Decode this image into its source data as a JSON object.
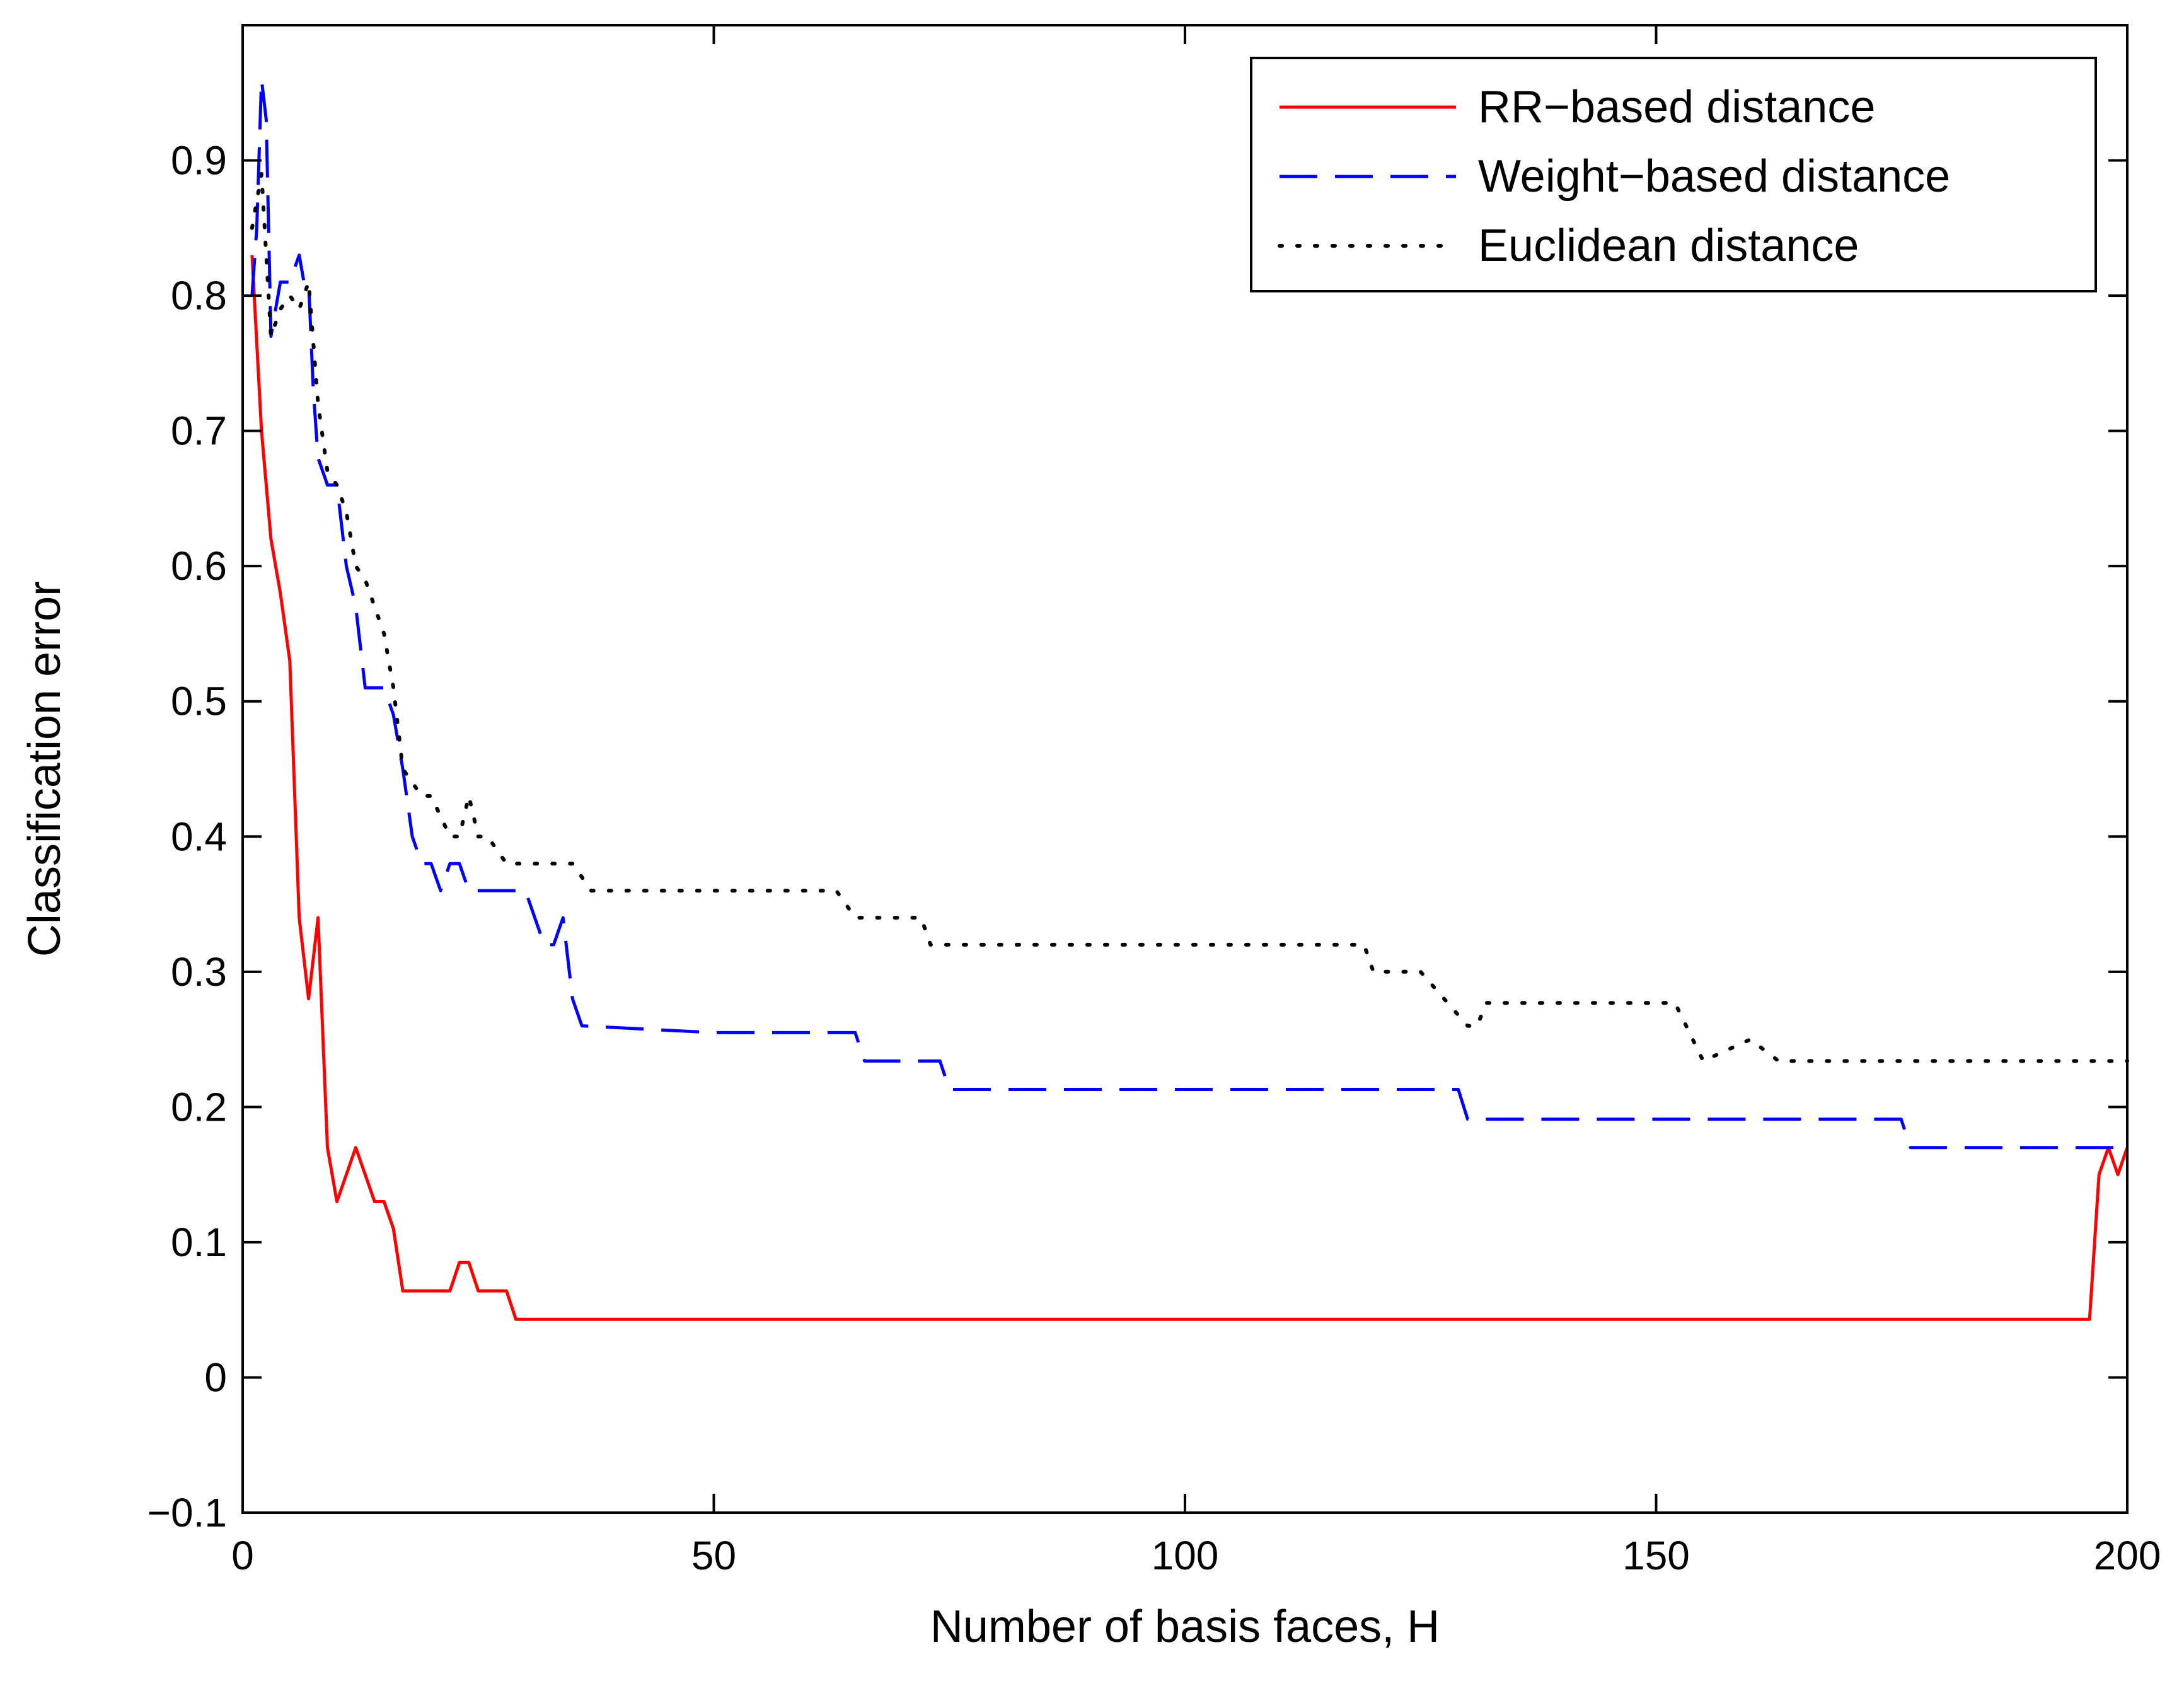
{
  "chart_data": {
    "type": "line",
    "title": "",
    "xlabel": "Number of basis faces, H",
    "ylabel": "Classification error",
    "xlim": [
      0,
      200
    ],
    "ylim": [
      -0.1,
      1.0
    ],
    "xticks": [
      0,
      50,
      100,
      150,
      200
    ],
    "xtick_labels": [
      "0",
      "50",
      "100",
      "150",
      "200"
    ],
    "yticks": [
      -0.1,
      0,
      0.1,
      0.2,
      0.3,
      0.4,
      0.5,
      0.6,
      0.7,
      0.8,
      0.9
    ],
    "ytick_labels": [
      "−0.1",
      "0",
      "0.1",
      "0.2",
      "0.3",
      "0.4",
      "0.5",
      "0.6",
      "0.7",
      "0.8",
      "0.9"
    ],
    "grid": false,
    "legend_position": "top-right",
    "series": [
      {
        "name": "RR−based distance",
        "color": "#ff0000",
        "style": "solid",
        "x": [
          1,
          2,
          3,
          4,
          5,
          6,
          7,
          8,
          9,
          10,
          11,
          12,
          13,
          14,
          15,
          16,
          17,
          18,
          19,
          20,
          21,
          22,
          23,
          24,
          25,
          26,
          27,
          28,
          29,
          30,
          40,
          60,
          80,
          100,
          120,
          140,
          160,
          180,
          196,
          197,
          198,
          199,
          200
        ],
        "y": [
          0.83,
          0.7,
          0.62,
          0.58,
          0.53,
          0.34,
          0.28,
          0.34,
          0.17,
          0.13,
          0.15,
          0.17,
          0.15,
          0.13,
          0.13,
          0.11,
          0.064,
          0.064,
          0.064,
          0.064,
          0.064,
          0.064,
          0.085,
          0.085,
          0.064,
          0.064,
          0.064,
          0.064,
          0.043,
          0.043,
          0.043,
          0.043,
          0.043,
          0.043,
          0.043,
          0.043,
          0.043,
          0.043,
          0.043,
          0.15,
          0.17,
          0.15,
          0.17
        ]
      },
      {
        "name": "Weight−based distance",
        "color": "#0000ff",
        "style": "dashed",
        "x": [
          1,
          1.5,
          2,
          2.5,
          3,
          3.5,
          4,
          5,
          6,
          6.5,
          7,
          7.5,
          8,
          9,
          10,
          11,
          12,
          13,
          14,
          15,
          16,
          17,
          18,
          19,
          20,
          21,
          22,
          23,
          24,
          25,
          27,
          29,
          30,
          31,
          32,
          33,
          34,
          35,
          36,
          50,
          65,
          66,
          74,
          75,
          76,
          100,
          129,
          130,
          131,
          150,
          176,
          177,
          178,
          190,
          200
        ],
        "y": [
          0.8,
          0.85,
          0.96,
          0.93,
          0.77,
          0.79,
          0.81,
          0.81,
          0.83,
          0.81,
          0.81,
          0.73,
          0.68,
          0.66,
          0.66,
          0.6,
          0.57,
          0.51,
          0.51,
          0.51,
          0.49,
          0.45,
          0.4,
          0.38,
          0.38,
          0.36,
          0.38,
          0.38,
          0.36,
          0.36,
          0.36,
          0.36,
          0.36,
          0.34,
          0.32,
          0.32,
          0.34,
          0.28,
          0.26,
          0.255,
          0.255,
          0.234,
          0.234,
          0.213,
          0.213,
          0.213,
          0.213,
          0.191,
          0.191,
          0.191,
          0.191,
          0.17,
          0.17,
          0.17,
          0.17
        ]
      },
      {
        "name": "Euclidean distance",
        "color": "#000000",
        "style": "dotted",
        "x": [
          1,
          2,
          3,
          4,
          5,
          6,
          7,
          8,
          9,
          10,
          11,
          12,
          13,
          14,
          15,
          16,
          17,
          18,
          19,
          20,
          22,
          23,
          24,
          25,
          26,
          28,
          30,
          33,
          35,
          37,
          40,
          50,
          60,
          63,
          65,
          70,
          72,
          73,
          75,
          100,
          119,
          120,
          125,
          130,
          131,
          132,
          140,
          150,
          152,
          155,
          160,
          163,
          170,
          180,
          200
        ],
        "y": [
          0.85,
          0.89,
          0.77,
          0.79,
          0.8,
          0.79,
          0.81,
          0.72,
          0.67,
          0.66,
          0.64,
          0.6,
          0.59,
          0.57,
          0.55,
          0.51,
          0.45,
          0.44,
          0.43,
          0.43,
          0.4,
          0.4,
          0.43,
          0.4,
          0.4,
          0.38,
          0.38,
          0.38,
          0.38,
          0.36,
          0.36,
          0.36,
          0.36,
          0.36,
          0.34,
          0.34,
          0.34,
          0.32,
          0.32,
          0.32,
          0.32,
          0.3,
          0.3,
          0.26,
          0.26,
          0.277,
          0.277,
          0.277,
          0.277,
          0.234,
          0.25,
          0.234,
          0.234,
          0.234,
          0.234
        ]
      }
    ]
  }
}
